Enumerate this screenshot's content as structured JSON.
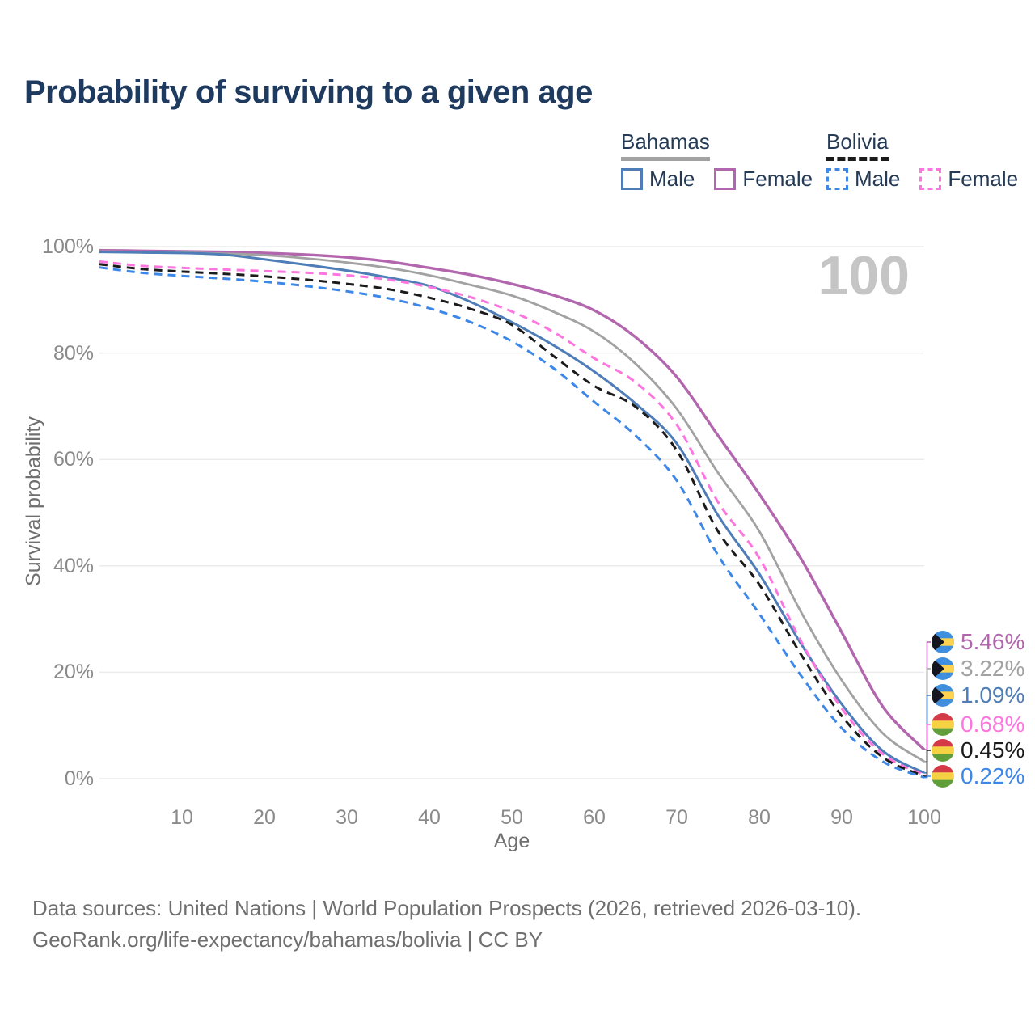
{
  "title": "Probability of surviving to a given age",
  "legend": {
    "groups": [
      {
        "country": "Bahamas",
        "line_style": "solid",
        "underline_color": "#a2a2a2",
        "items": [
          {
            "label": "Male",
            "color": "#4e7db7"
          },
          {
            "label": "Female",
            "color": "#b166ad"
          }
        ]
      },
      {
        "country": "Bolivia",
        "line_style": "dashed",
        "underline_color": "#1b1b1b",
        "items": [
          {
            "label": "Male",
            "color": "#3c87e7"
          },
          {
            "label": "Female",
            "color": "#fd75de"
          }
        ]
      }
    ]
  },
  "flags": {
    "bahamas": {
      "aquamarine": "#3f8fde",
      "gold": "#fdd34f",
      "black": "#15151f"
    },
    "bolivia": {
      "red": "#d43a45",
      "yellow": "#f5d243",
      "green": "#5f9e38"
    }
  },
  "chart_data": {
    "type": "line",
    "title": "Probability of surviving to a given age",
    "xlabel": "Age",
    "ylabel": "Survival probability",
    "xlim": [
      0,
      100
    ],
    "ylim": [
      0,
      100
    ],
    "grid": "horizontal",
    "legend_position": "top-right",
    "age_indicator": "100",
    "x_ticks": [
      "10",
      "20",
      "30",
      "40",
      "50",
      "60",
      "70",
      "80",
      "90",
      "100"
    ],
    "y_ticks": [
      {
        "value": 0,
        "label": "0%"
      },
      {
        "value": 20,
        "label": "20%"
      },
      {
        "value": 40,
        "label": "40%"
      },
      {
        "value": 60,
        "label": "60%"
      },
      {
        "value": 80,
        "label": "80%"
      },
      {
        "value": 100,
        "label": "100%"
      }
    ],
    "x": [
      0,
      5,
      10,
      15,
      20,
      25,
      30,
      35,
      40,
      45,
      50,
      55,
      60,
      65,
      70,
      75,
      80,
      85,
      90,
      95,
      100
    ],
    "series": [
      {
        "id": "bahamas-female",
        "name": "Bahamas Female",
        "country": "Bahamas",
        "sex": "Female",
        "color": "#b166ad",
        "line_style": "solid",
        "flag": "bahamas",
        "end_label": "5.46%",
        "values": [
          99.3,
          99.2,
          99.1,
          99.0,
          98.8,
          98.5,
          98.0,
          97.2,
          96.0,
          94.7,
          93.0,
          90.9,
          88.0,
          83.0,
          75.5,
          64.5,
          53.5,
          41.5,
          27.5,
          13.5,
          5.46
        ]
      },
      {
        "id": "bahamas-both",
        "name": "Bahamas (both sexes)",
        "country": "Bahamas",
        "sex": "Both",
        "color": "#a2a2a2",
        "line_style": "solid",
        "flag": "bahamas",
        "end_label": "3.22%",
        "values": [
          99.1,
          99.0,
          98.9,
          98.7,
          98.4,
          97.8,
          97.0,
          96.0,
          94.6,
          92.8,
          90.8,
          87.8,
          84.0,
          78.0,
          69.5,
          57.5,
          46.5,
          31.5,
          18.5,
          8.5,
          3.22
        ]
      },
      {
        "id": "bahamas-male",
        "name": "Bahamas Male",
        "country": "Bahamas",
        "sex": "Male",
        "color": "#4e7db7",
        "line_style": "solid",
        "flag": "bahamas",
        "end_label": "1.09%",
        "values": [
          99.0,
          98.9,
          98.8,
          98.5,
          97.6,
          96.6,
          95.5,
          94.2,
          92.6,
          89.6,
          85.8,
          81.5,
          76.5,
          70.5,
          63.0,
          49.5,
          38.5,
          25.5,
          14.0,
          5.2,
          1.09
        ]
      },
      {
        "id": "bolivia-female",
        "name": "Bolivia Female",
        "country": "Bolivia",
        "sex": "Female",
        "color": "#fd75de",
        "line_style": "dashed",
        "flag": "bolivia",
        "end_label": "0.68%",
        "values": [
          97.2,
          96.4,
          96.0,
          95.7,
          95.4,
          95.1,
          94.6,
          93.8,
          92.4,
          90.5,
          87.8,
          84.0,
          79.0,
          74.5,
          66.5,
          52.0,
          41.5,
          26.0,
          13.2,
          4.6,
          0.68
        ]
      },
      {
        "id": "bolivia-both",
        "name": "Bolivia (both sexes)",
        "country": "Bolivia",
        "sex": "Both",
        "color": "#1b1b1b",
        "line_style": "dashed",
        "flag": "bolivia",
        "end_label": "0.45%",
        "values": [
          96.7,
          95.8,
          95.3,
          94.9,
          94.4,
          93.8,
          93.0,
          92.0,
          90.4,
          88.3,
          85.3,
          79.5,
          73.8,
          69.9,
          61.7,
          46.5,
          36.5,
          23.5,
          11.8,
          4.0,
          0.45
        ]
      },
      {
        "id": "bolivia-male",
        "name": "Bolivia Male",
        "country": "Bolivia",
        "sex": "Male",
        "color": "#3c87e7",
        "line_style": "dashed",
        "flag": "bolivia",
        "end_label": "0.22%",
        "values": [
          96.1,
          95.1,
          94.5,
          94.0,
          93.4,
          92.6,
          91.6,
          90.3,
          88.4,
          85.8,
          82.2,
          77.2,
          70.8,
          64.5,
          56.0,
          42.0,
          31.0,
          19.5,
          9.5,
          3.2,
          0.22
        ]
      }
    ]
  },
  "footer": {
    "line1": "Data sources: United Nations | World Population Prospects (2026, retrieved 2026-03-10).",
    "line2": "GeoRank.org/life-expectancy/bahamas/bolivia | CC BY"
  }
}
